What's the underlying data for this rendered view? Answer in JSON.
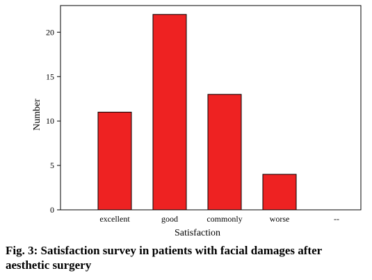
{
  "caption": "Fig. 3: Satisfaction survey in patients with facial damages after aesthetic surgery",
  "chart_data": {
    "type": "bar",
    "categories": [
      "excellent",
      "good",
      "commonly",
      "worse"
    ],
    "values": [
      11,
      22,
      13,
      4
    ],
    "extra_tick_label": "--",
    "xlabel": "Satisfaction",
    "ylabel": "Number",
    "ylim": [
      0,
      23
    ],
    "yticks": [
      0,
      5,
      10,
      15,
      20
    ],
    "grid": false,
    "bar_color": "#ee2222"
  }
}
